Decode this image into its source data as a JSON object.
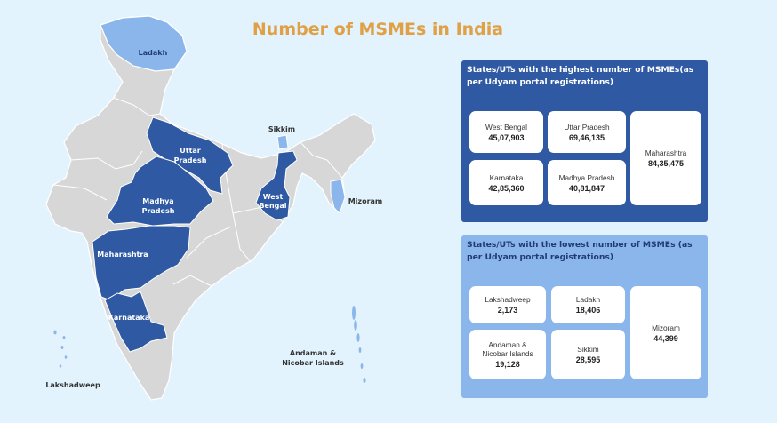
{
  "title": "Number of MSMEs in India",
  "colors": {
    "background": "#e3f3fd",
    "title": "#dfa046",
    "land": "#d7d7d7",
    "highlight_high": "#2f5aa3",
    "highlight_low": "#8ab6ec"
  },
  "map_labels": {
    "ladakh": "Ladakh",
    "uttar_pradesh": [
      "Uttar",
      "Pradesh"
    ],
    "madhya_pradesh": [
      "Madhya",
      "Pradesh"
    ],
    "maharashtra": "Maharashtra",
    "karnataka": "Karnataka",
    "west_bengal": [
      "West",
      "Bengal"
    ],
    "sikkim": "Sikkim",
    "mizoram": "Mizoram",
    "andaman": [
      "Andaman &",
      "Nicobar Islands"
    ],
    "lakshadweep": "Lakshadweep"
  },
  "highest": {
    "title": "States/UTs with the highest number of MSMEs(as per Udyam portal registrations)",
    "cards": [
      {
        "name": "West Bengal",
        "value": "45,07,903"
      },
      {
        "name": "Uttar Pradesh",
        "value": "69,46,135"
      },
      {
        "name": "Karnataka",
        "value": "42,85,360"
      },
      {
        "name": "Madhya Pradesh",
        "value": "40,81,847"
      },
      {
        "name": "Maharashtra",
        "value": "84,35,475"
      }
    ]
  },
  "lowest": {
    "title": "States/UTs with the lowest number of MSMEs (as per Udyam portal registrations)",
    "cards": [
      {
        "name": "Lakshadweep",
        "value": "2,173"
      },
      {
        "name": "Ladakh",
        "value": "18,406"
      },
      {
        "name": "Andaman & Nicobar Islands",
        "value": "19,128"
      },
      {
        "name": "Sikkim",
        "value": "28,595"
      },
      {
        "name": "Mizoram",
        "value": "44,399"
      }
    ]
  }
}
